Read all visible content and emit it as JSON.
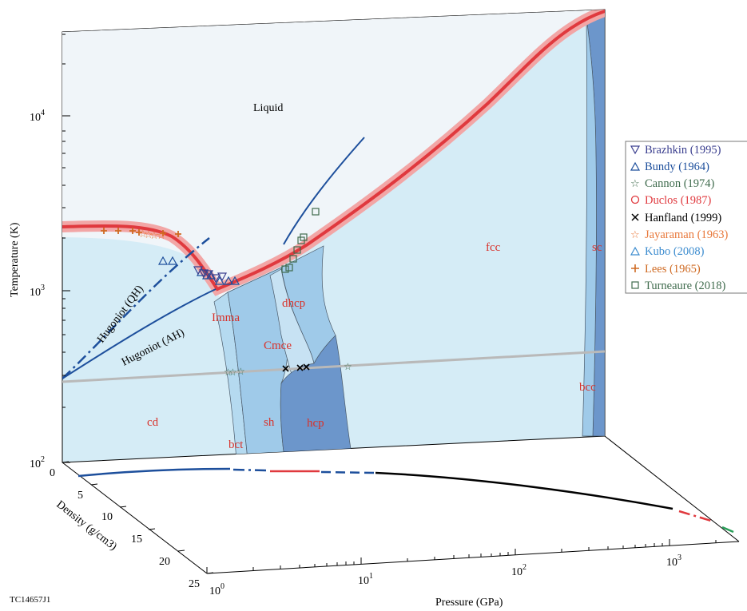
{
  "chart_data": {
    "type": "line",
    "title": "",
    "xlabel": "Pressure (GPa)",
    "ylabel": "Temperature (K)",
    "zlabel": "Density (g/cm3)",
    "xscale": "log",
    "yscale": "log",
    "xlim": [
      1,
      2000
    ],
    "ylim": [
      100,
      30000
    ],
    "zlim": [
      0,
      25
    ],
    "x_ticks": [
      {
        "base": "10",
        "exp": "0"
      },
      {
        "base": "10",
        "exp": "1"
      },
      {
        "base": "10",
        "exp": "2"
      },
      {
        "base": "10",
        "exp": "3"
      }
    ],
    "y_ticks": [
      {
        "base": "10",
        "exp": "2"
      },
      {
        "base": "10",
        "exp": "3"
      },
      {
        "base": "10",
        "exp": "4"
      }
    ],
    "z_ticks": [
      "0",
      "5",
      "10",
      "15",
      "20",
      "25"
    ],
    "phase_labels": {
      "liquid": "Liquid",
      "cd": "cd",
      "bct": "bct",
      "imma": "Imma",
      "sh": "sh",
      "cmce": "Cmce",
      "dhcp": "dhcp",
      "hcp": "hcp",
      "fcc": "fcc",
      "sc": "sc",
      "bcc": "bcc"
    },
    "curve_labels": {
      "hugoniot_qh": "Hugoniot (QH)",
      "hugoniot_ah": "Hugoniot (AH)"
    },
    "series": [
      {
        "name": "Melt curve",
        "color": "#e0393e",
        "points": [
          [
            1,
            1750
          ],
          [
            2,
            1750
          ],
          [
            3,
            1700
          ],
          [
            5,
            1450
          ],
          [
            7,
            1150
          ],
          [
            8,
            1050
          ],
          [
            12,
            1200
          ],
          [
            20,
            1500
          ],
          [
            30,
            2100
          ],
          [
            60,
            3500
          ],
          [
            150,
            7500
          ],
          [
            400,
            14000
          ],
          [
            900,
            22000
          ],
          [
            1500,
            28000
          ],
          [
            2000,
            30000
          ]
        ]
      },
      {
        "name": "Hugoniot (AH)",
        "color": "#1d4f9c",
        "points": [
          [
            1,
            300
          ],
          [
            2,
            470
          ],
          [
            4,
            750
          ],
          [
            6,
            920
          ],
          [
            8,
            1050
          ]
        ]
      },
      {
        "name": "Hugoniot (QH)",
        "color": "#1d4f9c",
        "dash": "dash-dot",
        "points": [
          [
            1,
            300
          ],
          [
            2,
            620
          ],
          [
            3,
            1000
          ],
          [
            4,
            1400
          ],
          [
            5,
            2000
          ]
        ]
      },
      {
        "name": "Hugoniot above melt",
        "color": "#1d4f9c",
        "points": [
          [
            20,
            1300
          ],
          [
            30,
            2500
          ],
          [
            45,
            5000
          ],
          [
            60,
            7500
          ]
        ]
      },
      {
        "name": "Room-temperature isotherm",
        "color": "#b9b9b9",
        "points": [
          [
            1,
            300
          ],
          [
            10,
            325
          ],
          [
            100,
            350
          ],
          [
            1000,
            385
          ],
          [
            2000,
            395
          ]
        ]
      }
    ],
    "experiments": [
      {
        "name": "Brazhkin (1995)",
        "marker": "triangle-down",
        "color": "#3b3f8f",
        "points": [
          [
            7.5,
            1200
          ],
          [
            8.3,
            1150
          ],
          [
            9,
            1160
          ],
          [
            10.5,
            1130
          ],
          [
            11,
            1100
          ]
        ]
      },
      {
        "name": "Bundy (1964)",
        "marker": "triangle-up",
        "color": "#1d4f9c",
        "points": [
          [
            5.5,
            1420
          ],
          [
            6,
            1420
          ],
          [
            7,
            1270
          ],
          [
            8,
            1200
          ],
          [
            10,
            1100
          ],
          [
            11.5,
            1100
          ],
          [
            12.5,
            1100
          ],
          [
            13.5,
            1100
          ]
        ]
      },
      {
        "name": "Cannon (1974)",
        "marker": "star-open",
        "color": "#3f6b4d",
        "points": [
          [
            10.5,
            331
          ],
          [
            11,
            332
          ],
          [
            12,
            334
          ],
          [
            90,
            370
          ]
        ]
      },
      {
        "name": "Duclos (1987)",
        "marker": "circle",
        "color": "#e0393e",
        "points": []
      },
      {
        "name": "Hanfland (1999)",
        "marker": "x",
        "color": "#000000",
        "points": [
          [
            35,
            350
          ],
          [
            42,
            352
          ],
          [
            45,
            354
          ]
        ]
      },
      {
        "name": "Jayaraman (1963)",
        "marker": "star",
        "color": "#e8783a",
        "points": [
          [
            3,
            1610
          ],
          [
            3.5,
            1600
          ],
          [
            4,
            1590
          ],
          [
            4.5,
            1580
          ]
        ]
      },
      {
        "name": "Kubo (2008)",
        "marker": "triangle-up",
        "color": "#3c8ccf",
        "points": []
      },
      {
        "name": "Lees (1965)",
        "marker": "plus",
        "color": "#cf6a22",
        "points": [
          [
            1.5,
            1680
          ],
          [
            2,
            1680
          ],
          [
            2.5,
            1650
          ],
          [
            3,
            1640
          ],
          [
            5,
            1570
          ],
          [
            6,
            1550
          ]
        ]
      },
      {
        "name": "Turneaure (2018)",
        "marker": "square",
        "color": "#3f6b4d",
        "points": [
          [
            20,
            1300
          ],
          [
            21,
            1320
          ],
          [
            22.5,
            1470
          ],
          [
            23.5,
            1620
          ],
          [
            25,
            1900
          ],
          [
            26,
            2000
          ],
          [
            30,
            2750
          ]
        ]
      }
    ],
    "density_curve": {
      "xlabel": "Pressure (GPa)",
      "segments": [
        {
          "color": "#1d4f9c",
          "style": "solid"
        },
        {
          "color": "#1d4f9c",
          "style": "dash-dot"
        },
        {
          "color": "#e0393e",
          "style": "solid"
        },
        {
          "color": "#1d4f9c",
          "style": "dashed"
        },
        {
          "color": "#000000",
          "style": "solid"
        },
        {
          "color": "#e0393e",
          "style": "dash-dot"
        },
        {
          "color": "#2aa05a",
          "style": "solid"
        }
      ]
    },
    "legend_position": "right"
  },
  "figure_code": "TC14657J1",
  "colors": {
    "liquid": "#f0f5f9",
    "solid_light": "#d5ecf6",
    "solid_mid": "#9fcae9",
    "solid_dark": "#6c96cb",
    "melt": "#e0393e",
    "hugoniot": "#1d4f9c"
  }
}
